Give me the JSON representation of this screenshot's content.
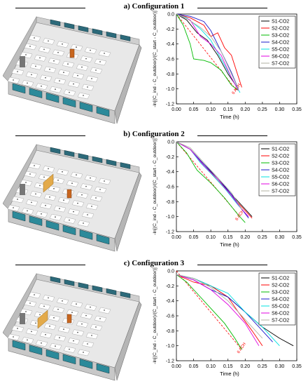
{
  "colors": {
    "S1": "#000000",
    "S2": "#ff0000",
    "S3": "#00bb00",
    "S4": "#1a1acc",
    "S5": "#00e0e0",
    "S6": "#e000e0",
    "S7": "#b0b0a0",
    "ref": "#ff0000"
  },
  "panels": [
    {
      "title": "a) Configuration 1"
    },
    {
      "title": "b) Configuration 2"
    },
    {
      "title": "c) Configuration 3"
    }
  ],
  "chart_data": [
    {
      "type": "line",
      "ylabel": "-ln[(C_ind - C_outdoor)/(C_start - C_outdoor)]",
      "xlabel": "Time (h)",
      "xlim": [
        0.0,
        0.35
      ],
      "ylim": [
        -1.2,
        0.0
      ],
      "xticks": [
        "0.00",
        "0.05",
        "0.10",
        "0.15",
        "0.20",
        "0.25",
        "0.30",
        "0.35"
      ],
      "yticks": [
        "0.0",
        "-0.2",
        "-0.4",
        "-0.6",
        "-0.8",
        "-1.0",
        "-1.2"
      ],
      "legend_position": "top-right",
      "reference": {
        "label": "6 ACH",
        "x": [
          0.0,
          0.175
        ],
        "y": [
          0.0,
          -1.02
        ]
      },
      "series": [
        {
          "name": "S1-CO2",
          "x": [
            0,
            0.03,
            0.06,
            0.09,
            0.12,
            0.15,
            0.18
          ],
          "y": [
            0,
            -0.08,
            -0.25,
            -0.35,
            -0.55,
            -0.8,
            -1.0
          ]
        },
        {
          "name": "S2-CO2",
          "x": [
            0,
            0.04,
            0.08,
            0.1,
            0.12,
            0.14,
            0.16,
            0.19
          ],
          "y": [
            0,
            -0.05,
            -0.15,
            -0.3,
            -0.25,
            -0.45,
            -0.55,
            -0.98
          ]
        },
        {
          "name": "S3-CO2",
          "x": [
            0,
            0.02,
            0.04,
            0.05,
            0.08,
            0.1,
            0.13,
            0.16,
            0.18
          ],
          "y": [
            0,
            -0.15,
            -0.4,
            -0.6,
            -0.62,
            -0.65,
            -0.75,
            -0.95,
            -1.02
          ]
        },
        {
          "name": "S4-CO2",
          "x": [
            0,
            0.04,
            0.08,
            0.1,
            0.13,
            0.16,
            0.18
          ],
          "y": [
            0,
            -0.03,
            -0.1,
            -0.22,
            -0.5,
            -0.78,
            -1.0
          ]
        },
        {
          "name": "S5-CO2",
          "x": [
            0,
            0.03,
            0.07,
            0.1,
            0.13,
            0.16,
            0.185
          ],
          "y": [
            0,
            -0.05,
            -0.2,
            -0.35,
            -0.6,
            -0.85,
            -1.05
          ]
        },
        {
          "name": "S6-CO2",
          "x": [
            0,
            0.04,
            0.07,
            0.1,
            0.13,
            0.16,
            0.18
          ],
          "y": [
            0,
            -0.08,
            -0.3,
            -0.4,
            -0.55,
            -0.85,
            -1.02
          ]
        },
        {
          "name": "S7-CO2",
          "x": [
            0,
            0.03,
            0.07,
            0.1,
            0.13,
            0.16,
            0.18
          ],
          "y": [
            0,
            -0.06,
            -0.18,
            -0.3,
            -0.5,
            -0.8,
            -1.0
          ]
        }
      ]
    },
    {
      "type": "line",
      "ylabel": "-ln[(C_ind - C_outdoor)/(C_start - C_outdoor)]",
      "xlabel": "Time (h)",
      "xlim": [
        0.0,
        0.35
      ],
      "ylim": [
        -1.2,
        0.0
      ],
      "xticks": [
        "0.00",
        "0.05",
        "0.10",
        "0.15",
        "0.20",
        "0.25",
        "0.30",
        "0.35"
      ],
      "yticks": [
        "0.0",
        "-0.2",
        "-0.4",
        "-0.6",
        "-0.8",
        "-1.0",
        "-1.2"
      ],
      "legend_position": "top-right",
      "reference": {
        "label": "6 ACH",
        "x": [
          0.0,
          0.185
        ],
        "y": [
          0.0,
          -1.0
        ]
      },
      "series": [
        {
          "name": "S1-CO2",
          "x": [
            0,
            0.04,
            0.08,
            0.12,
            0.16,
            0.2,
            0.22
          ],
          "y": [
            0,
            -0.1,
            -0.3,
            -0.5,
            -0.7,
            -0.9,
            -1.0
          ]
        },
        {
          "name": "S2-CO2",
          "x": [
            0,
            0.04,
            0.08,
            0.12,
            0.16,
            0.2,
            0.22
          ],
          "y": [
            0,
            -0.1,
            -0.32,
            -0.52,
            -0.72,
            -0.92,
            -1.02
          ]
        },
        {
          "name": "S3-CO2",
          "x": [
            0,
            0.03,
            0.06,
            0.1,
            0.14,
            0.18,
            0.2
          ],
          "y": [
            0,
            -0.15,
            -0.38,
            -0.55,
            -0.75,
            -0.98,
            -1.08
          ]
        },
        {
          "name": "S4-CO2",
          "x": [
            0,
            0.04,
            0.08,
            0.12,
            0.16,
            0.19,
            0.21
          ],
          "y": [
            0,
            -0.1,
            -0.3,
            -0.48,
            -0.7,
            -0.9,
            -1.02
          ]
        },
        {
          "name": "S5-CO2",
          "x": [
            0,
            0.04,
            0.07,
            0.1,
            0.14,
            0.18,
            0.2
          ],
          "y": [
            0,
            -0.1,
            -0.28,
            -0.42,
            -0.62,
            -0.85,
            -0.95
          ]
        },
        {
          "name": "S6-CO2",
          "x": [
            0,
            0.04,
            0.08,
            0.12,
            0.16,
            0.19,
            0.21
          ],
          "y": [
            0,
            -0.1,
            -0.32,
            -0.5,
            -0.72,
            -0.9,
            -1.0
          ]
        },
        {
          "name": "S7-CO2",
          "x": [
            0,
            0.04,
            0.08,
            0.12,
            0.16,
            0.19
          ],
          "y": [
            0,
            -0.08,
            -0.28,
            -0.48,
            -0.68,
            -0.9
          ]
        }
      ]
    },
    {
      "type": "line",
      "ylabel": "-ln[(C_ind - C_outdoor)/(C_start - C_outdoor)]",
      "xlabel": "Time (h)",
      "xlim": [
        0.0,
        0.35
      ],
      "ylim": [
        -1.2,
        0.0
      ],
      "xticks": [
        "0.00",
        "0.05",
        "0.10",
        "0.15",
        "0.20",
        "0.25",
        "0.30",
        "0.35"
      ],
      "yticks": [
        "0.0",
        "-0.2",
        "-0.4",
        "-0.6",
        "-0.8",
        "-1.0",
        "-1.2"
      ],
      "legend_position": "top-right",
      "reference": {
        "label": "6 ACH",
        "x": [
          0.0,
          0.19
        ],
        "y": [
          0.0,
          -1.05
        ]
      },
      "series": [
        {
          "name": "S1-CO2",
          "x": [
            0,
            0.05,
            0.1,
            0.15,
            0.2,
            0.25,
            0.3,
            0.34
          ],
          "y": [
            -0.05,
            -0.1,
            -0.2,
            -0.35,
            -0.55,
            -0.75,
            -0.9,
            -1.0
          ]
        },
        {
          "name": "S2-CO2",
          "x": [
            0,
            0.05,
            0.1,
            0.15,
            0.18,
            0.22,
            0.25
          ],
          "y": [
            -0.05,
            -0.15,
            -0.2,
            -0.35,
            -0.55,
            -0.8,
            -1.0
          ]
        },
        {
          "name": "S3-CO2",
          "x": [
            0,
            0.03,
            0.06,
            0.1,
            0.14,
            0.17,
            0.19
          ],
          "y": [
            -0.05,
            -0.15,
            -0.3,
            -0.5,
            -0.7,
            -0.9,
            -1.05
          ]
        },
        {
          "name": "S4-CO2",
          "x": [
            0,
            0.05,
            0.1,
            0.15,
            0.2,
            0.25,
            0.28
          ],
          "y": [
            -0.05,
            -0.12,
            -0.25,
            -0.35,
            -0.55,
            -0.8,
            -0.95
          ]
        },
        {
          "name": "S5-CO2",
          "x": [
            0,
            0.05,
            0.1,
            0.15,
            0.2,
            0.25,
            0.3
          ],
          "y": [
            -0.05,
            -0.1,
            -0.2,
            -0.3,
            -0.55,
            -0.75,
            -1.0
          ]
        },
        {
          "name": "S6-CO2",
          "x": [
            0,
            0.05,
            0.1,
            0.15,
            0.2,
            0.24
          ],
          "y": [
            -0.05,
            -0.12,
            -0.25,
            -0.45,
            -0.7,
            -1.0
          ]
        },
        {
          "name": "S7-CO2",
          "x": [
            0,
            0.05,
            0.1,
            0.15,
            0.2,
            0.25
          ],
          "y": [
            -0.05,
            -0.1,
            -0.22,
            -0.4,
            -0.65,
            -0.9
          ]
        }
      ]
    }
  ]
}
